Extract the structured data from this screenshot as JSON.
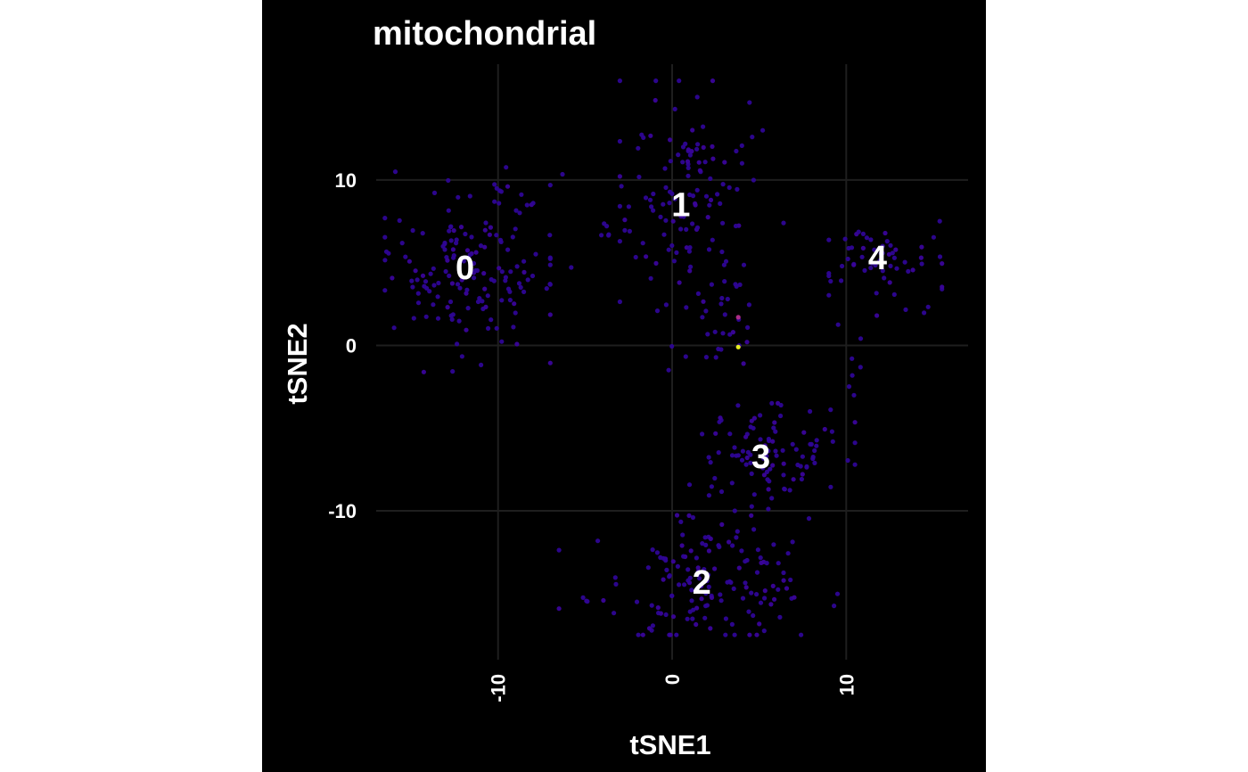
{
  "chart_data": {
    "type": "scatter",
    "title": "mitochondrial",
    "xlabel": "tSNE1",
    "ylabel": "tSNE2",
    "xlim": [
      -17,
      17
    ],
    "ylim": [
      -19,
      17
    ],
    "x_ticks": [
      -10,
      0,
      10
    ],
    "y_ticks": [
      -10,
      0,
      10
    ],
    "x_tick_labels": [
      "-10",
      "0",
      "10"
    ],
    "y_tick_labels": [
      "-10",
      "0",
      "10"
    ],
    "grid": true,
    "background": "#000000",
    "point_colors": {
      "low": "#2e0595",
      "low_alt": "#3a049a",
      "mid": "#b52f8c",
      "high": "#f0f921"
    },
    "clusters": [
      {
        "label": "0",
        "center": [
          -11.9,
          4.7
        ],
        "n": 150,
        "spread": [
          2.6,
          2.6
        ],
        "x_range": [
          -16.5,
          -7
        ],
        "y_range": [
          -1.8,
          10.5
        ]
      },
      {
        "label": "1",
        "center": [
          0.5,
          8.5
        ],
        "n": 125,
        "spread": [
          1.8,
          3.8
        ],
        "x_range": [
          -3,
          5
        ],
        "y_range": [
          -2,
          16
        ]
      },
      {
        "label": "2",
        "center": [
          1.7,
          -14.3
        ],
        "n": 150,
        "spread": [
          3.2,
          1.9
        ],
        "x_range": [
          -6.5,
          9.5
        ],
        "y_range": [
          -17.5,
          -10
        ]
      },
      {
        "label": "3",
        "center": [
          5.1,
          -6.7
        ],
        "n": 100,
        "spread": [
          2.4,
          1.8
        ],
        "x_range": [
          1,
          10.5
        ],
        "y_range": [
          -10.5,
          -3.5
        ]
      },
      {
        "label": "4",
        "center": [
          11.8,
          5.3
        ],
        "n": 60,
        "spread": [
          2.0,
          1.2
        ],
        "x_range": [
          9,
          15.5
        ],
        "y_range": [
          0,
          8
        ]
      }
    ],
    "bridges": [
      {
        "name": "0-1",
        "x_range": [
          -10,
          -2
        ],
        "y_range": [
          2,
          11
        ],
        "n": 22
      },
      {
        "name": "1-down",
        "x_range": [
          2,
          4.5
        ],
        "y_range": [
          -2,
          4
        ],
        "n": 18
      },
      {
        "name": "4-3",
        "x_range": [
          9,
          11
        ],
        "y_range": [
          -6,
          1.5
        ],
        "n": 8
      }
    ],
    "extra_points": [
      {
        "x": 3.8,
        "y": 1.7,
        "color": "mid"
      },
      {
        "x": 3.8,
        "y": -0.1,
        "color": "high"
      },
      {
        "x": 4.3,
        "y": 0.2,
        "color": "low_alt"
      },
      {
        "x": 3.5,
        "y": 0.8,
        "color": "low_alt"
      },
      {
        "x": 4.1,
        "y": -1.1,
        "color": "low_alt"
      },
      {
        "x": 6.4,
        "y": 7.4,
        "color": "low"
      },
      {
        "x": 4.6,
        "y": 12.6,
        "color": "low"
      },
      {
        "x": 5.2,
        "y": 13.0,
        "color": "low"
      }
    ]
  }
}
